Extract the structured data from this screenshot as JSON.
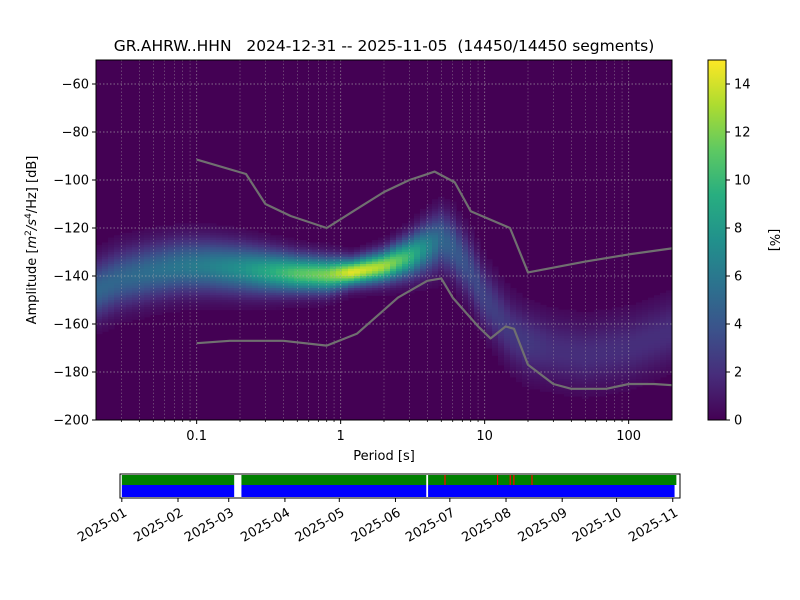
{
  "chart_data": [
    {
      "type": "heatmap",
      "title": "GR.AHRW..HHN   2024-12-31 -- 2025-11-05  (14450/14450 segments)",
      "xlabel": "Period [s]",
      "ylabel": "Amplitude [m²/s⁴/Hz] [dB]",
      "ylabel_parts": {
        "pre": "Amplitude [",
        "m": "m",
        "two": "2",
        "mid": "/s",
        "four": "4",
        "post": "/Hz] [dB]"
      },
      "xscale": "log",
      "xlim": [
        0.02,
        200
      ],
      "ylim": [
        -200,
        -50
      ],
      "x_ticks": [
        0.1,
        1,
        10,
        100
      ],
      "x_tick_labels": [
        "0.1",
        "1",
        "10",
        "100"
      ],
      "y_ticks": [
        -200,
        -180,
        -160,
        -140,
        -120,
        -100,
        -80,
        -60
      ],
      "y_tick_labels": [
        "−200",
        "−180",
        "−160",
        "−140",
        "−120",
        "−100",
        "−80",
        "−60"
      ],
      "grid": true,
      "colormap": "viridis",
      "colorbar": {
        "label": "[%]",
        "range": [
          0,
          15
        ],
        "ticks": [
          0,
          2,
          4,
          6,
          8,
          10,
          12,
          14
        ],
        "tick_labels": [
          "0",
          "2",
          "4",
          "6",
          "8",
          "10",
          "12",
          "14"
        ]
      },
      "density_ridge": {
        "period": [
          0.02,
          0.03,
          0.05,
          0.08,
          0.12,
          0.2,
          0.3,
          0.5,
          0.8,
          1.2,
          2,
          3,
          4,
          5,
          6,
          8,
          10,
          15,
          20,
          30,
          50,
          100,
          200
        ],
        "center": [
          -146,
          -141,
          -138,
          -136,
          -136,
          -137,
          -138,
          -139,
          -139.5,
          -138.5,
          -136,
          -132,
          -128,
          -125,
          -128,
          -138,
          -149,
          -163,
          -168,
          -171,
          -173,
          -170,
          -163
        ],
        "peak_percent": [
          5,
          5,
          5.5,
          6,
          6.5,
          7.5,
          9,
          11,
          12,
          14.5,
          13,
          10,
          7,
          5,
          4.5,
          3.5,
          3,
          2.5,
          2.5,
          2,
          2,
          2,
          2
        ]
      },
      "series": [
        {
          "x": [
            0.1,
            0.22,
            0.3,
            0.45,
            0.8,
            1.3,
            2,
            3,
            3.8,
            4.5,
            6.2,
            8,
            15,
            20,
            50,
            100,
            200
          ],
          "y": [
            -91.5,
            -97.5,
            -110,
            -115,
            -120,
            -112,
            -105,
            -100,
            -98,
            -96.5,
            -101,
            -113,
            -120,
            -138.5,
            -134,
            -131,
            -128.5
          ],
          "color": "#707070"
        },
        {
          "x": [
            0.1,
            0.17,
            0.4,
            0.8,
            1.3,
            2.5,
            4,
            5,
            6,
            9,
            11,
            14,
            16,
            20,
            30,
            40,
            70,
            100,
            150,
            200
          ],
          "y": [
            -168,
            -167,
            -167,
            -169,
            -164,
            -149,
            -142,
            -141,
            -149,
            -161,
            -166,
            -161,
            -162,
            -177,
            -185,
            -187,
            -187,
            -185,
            -185,
            -185.5
          ],
          "color": "#707070"
        }
      ]
    },
    {
      "type": "bar",
      "xlim": [
        "2024-12-31",
        "2025-11-05"
      ],
      "x_tick_labels": [
        "2025-01",
        "2025-02",
        "2025-03",
        "2025-04",
        "2025-05",
        "2025-06",
        "2025-07",
        "2025-08",
        "2025-09",
        "2025-10",
        "2025-11"
      ],
      "x_tick_dates": [
        "2025-01-01",
        "2025-02-01",
        "2025-03-01",
        "2025-04-01",
        "2025-05-01",
        "2025-06-01",
        "2025-07-01",
        "2025-08-01",
        "2025-09-01",
        "2025-10-01",
        "2025-11-01"
      ],
      "green_segments": [
        [
          "2025-01-01",
          "2025-03-04"
        ],
        [
          "2025-03-08",
          "2025-06-18"
        ],
        [
          "2025-06-19",
          "2025-11-03"
        ]
      ],
      "blue_segments": [
        [
          "2025-01-01",
          "2025-03-04"
        ],
        [
          "2025-03-08",
          "2025-06-18"
        ],
        [
          "2025-06-19",
          "2025-11-02"
        ]
      ],
      "red_marks": [
        "2025-06-28",
        "2025-07-27",
        "2025-08-03",
        "2025-08-05",
        "2025-08-15"
      ],
      "colors": {
        "green": "#008000",
        "blue": "#0000ff",
        "red": "#ff0000"
      }
    }
  ]
}
